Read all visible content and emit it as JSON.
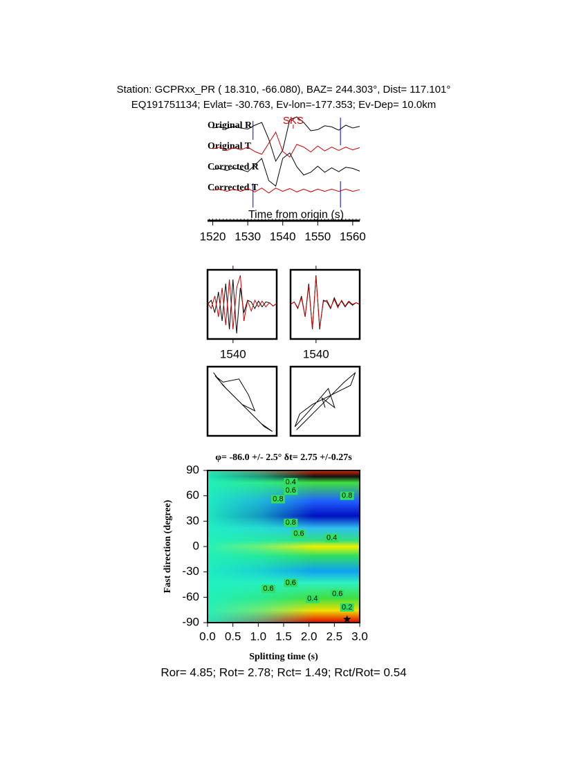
{
  "header": {
    "line1": "Station: GCPRxx_PR (  18.310,  -66.080), BAZ=  244.303°, Dist=  117.101°",
    "line2": "EQ191751134; Evlat= -30.763, Ev-lon=-177.353; Ev-Dep= 10.0km"
  },
  "chart_data": [
    {
      "type": "traces",
      "x_label": "Time from origin (s)",
      "x": [
        1520,
        1522,
        1524,
        1526,
        1528,
        1530,
        1532,
        1534,
        1536,
        1538,
        1540,
        1542,
        1544,
        1546,
        1548,
        1550,
        1552,
        1554,
        1556,
        1558,
        1560,
        1562
      ],
      "xlim": [
        1518.5,
        1562
      ],
      "xticks": [
        1520,
        1530,
        1540,
        1550,
        1560
      ],
      "phase": {
        "name": "SKS",
        "time": 1543
      },
      "window": [
        1531.5,
        1556.5
      ],
      "series": [
        {
          "name": "Original R",
          "color": "#000000",
          "values": [
            0,
            0.2,
            -0.1,
            0.3,
            0,
            -0.2,
            0.5,
            1.0,
            -2,
            -6,
            -4,
            1.5,
            2,
            1,
            -0.5,
            -0.3,
            0.4,
            0.2,
            -0.4,
            0.5,
            0,
            0.3
          ]
        },
        {
          "name": "Original T",
          "color": "#cc0000",
          "values": [
            0,
            0.3,
            -0.3,
            0.2,
            -0.2,
            0.3,
            -0.5,
            -1,
            1,
            3,
            -0.5,
            -1.5,
            0.8,
            0.3,
            -0.6,
            0.5,
            -0.4,
            0.3,
            -0.3,
            0.3,
            -0.2,
            0.2
          ]
        },
        {
          "name": "Corrected R",
          "color": "#000000",
          "values": [
            0,
            0.2,
            -0.2,
            0.3,
            0,
            -0.4,
            0.8,
            2,
            -2,
            -3,
            2,
            3,
            0.5,
            -1,
            -0.5,
            0.6,
            -0.5,
            0.3,
            -0.4,
            0.4,
            0.2,
            -0.3
          ]
        },
        {
          "name": "Corrected T",
          "color": "#cc0000",
          "values": [
            0,
            0.2,
            -0.2,
            0.2,
            -0.2,
            0.3,
            -0.3,
            0.4,
            -0.5,
            0.4,
            -0.2,
            0.3,
            -0.3,
            0.2,
            -0.3,
            0.2,
            -0.2,
            0.2,
            -0.2,
            0.2,
            -0.2,
            0.1
          ]
        }
      ]
    },
    {
      "type": "line",
      "x": [
        1533,
        1534,
        1535,
        1536,
        1537,
        1538,
        1539,
        1540,
        1541,
        1542,
        1543,
        1544,
        1545,
        1546,
        1547,
        1548,
        1549,
        1550,
        1551,
        1552
      ],
      "xlim": [
        1533,
        1552
      ],
      "xticks": [
        1540
      ],
      "series": [
        {
          "color": "#000000",
          "values": [
            0,
            0.5,
            -1,
            1.5,
            -2,
            2.5,
            -3,
            3,
            -3.5,
            2,
            -1,
            0.5,
            0.3,
            -0.5,
            0.4,
            -0.3,
            0.3,
            0.2,
            -0.2,
            0.1
          ]
        },
        {
          "color": "#cc0000",
          "values": [
            0.2,
            -0.5,
            1,
            -1.5,
            2,
            -2.5,
            3,
            -3,
            2,
            3.5,
            -2,
            0.5,
            -0.8,
            0.5,
            -0.3,
            0.4,
            -0.3,
            0.2,
            -0.2,
            0.1
          ]
        }
      ]
    },
    {
      "type": "line",
      "x": [
        1533,
        1534,
        1535,
        1536,
        1537,
        1538,
        1539,
        1540,
        1541,
        1542,
        1543,
        1544,
        1545,
        1546,
        1547,
        1548,
        1549,
        1550,
        1551,
        1552
      ],
      "xlim": [
        1533,
        1552
      ],
      "xticks": [
        1540
      ],
      "series": [
        {
          "color": "#000000",
          "values": [
            0,
            0.3,
            -0.5,
            1,
            -1.5,
            2.5,
            -3,
            3.5,
            -3,
            0.5,
            0.3,
            -0.5,
            0.8,
            -0.2,
            0.4,
            -0.3,
            0.3,
            -0.1,
            0.2,
            0
          ]
        },
        {
          "color": "#cc0000",
          "values": [
            0,
            0.3,
            -0.4,
            0.8,
            -1.5,
            2.2,
            -3,
            3.3,
            -2.8,
            0.3,
            0.5,
            -0.4,
            0.6,
            -0.4,
            0.5,
            -0.2,
            0.4,
            0,
            0.2,
            0
          ]
        }
      ]
    },
    {
      "type": "particle",
      "xlim": [
        -1,
        1
      ],
      "ylim": [
        -1,
        1
      ],
      "color": "#000000",
      "x": [
        -0.9,
        -0.6,
        -0.2,
        0.2,
        0.6,
        0.95,
        0.7,
        0.3,
        -0.1,
        -0.5,
        -0.85,
        -0.6,
        -0.1,
        0.2,
        0.4,
        0.0,
        -0.2
      ],
      "y": [
        0.9,
        0.5,
        0.1,
        -0.3,
        -0.7,
        -0.95,
        -0.8,
        -0.4,
        0,
        0.4,
        0.8,
        0.6,
        0.7,
        0.2,
        -0.3,
        -0.1,
        0.1
      ]
    },
    {
      "type": "particle",
      "xlim": [
        -1,
        1
      ],
      "ylim": [
        -1,
        1
      ],
      "color": "#000000",
      "x": [
        -0.9,
        -0.6,
        -0.2,
        0.2,
        0.6,
        0.95,
        0.8,
        0.4,
        0,
        -0.4,
        -0.8,
        -0.95,
        -0.5,
        0.1,
        0.3,
        -0.1,
        0.0
      ],
      "y": [
        -0.9,
        -0.6,
        -0.2,
        0.2,
        0.6,
        0.9,
        0.5,
        0.3,
        0.1,
        -0.1,
        -0.4,
        -0.8,
        -0.3,
        0.4,
        -0.2,
        0.1,
        -0.2
      ]
    },
    {
      "type": "contour",
      "title": "φ= -86.0 +/- 2.5° δt= 2.75 +/-0.27s",
      "x_label": "Splitting time (s)",
      "y_label": "Fast direction (degree)",
      "xlim": [
        0,
        3
      ],
      "ylim": [
        -90,
        90
      ],
      "xticks": [
        {
          "value": 0,
          "label": "0.0"
        },
        0.5,
        {
          "value": 1,
          "label": "1.0"
        },
        1.5,
        {
          "value": 2,
          "label": "2.0"
        },
        2.5,
        {
          "value": 3,
          "label": "3.0"
        }
      ],
      "yticks": [
        -90,
        -60,
        -30,
        0,
        30,
        60,
        90
      ],
      "best": {
        "x": 2.75,
        "y": -86
      },
      "contour_labels": [
        {
          "x": 1.64,
          "y": 76,
          "level": 0.4
        },
        {
          "x": 1.64,
          "y": 66,
          "level": 0.6
        },
        {
          "x": 1.39,
          "y": 56,
          "level": 0.8
        },
        {
          "x": 2.75,
          "y": 60,
          "level": 0.8
        },
        {
          "x": 1.64,
          "y": 28,
          "level": 0.8
        },
        {
          "x": 1.8,
          "y": 15,
          "level": 0.6
        },
        {
          "x": 2.45,
          "y": 10,
          "level": 0.4
        },
        {
          "x": 1.64,
          "y": -43,
          "level": 0.6
        },
        {
          "x": 1.2,
          "y": -50,
          "level": 0.6
        },
        {
          "x": 2.07,
          "y": -62,
          "level": 0.4
        },
        {
          "x": 2.56,
          "y": -56,
          "level": 0.6
        },
        {
          "x": 2.75,
          "y": -72,
          "level": 0.2
        }
      ]
    }
  ],
  "footer": "Ror= 4.85; Rot= 2.78; Rct= 1.49; Rct/Rot= 0.54"
}
